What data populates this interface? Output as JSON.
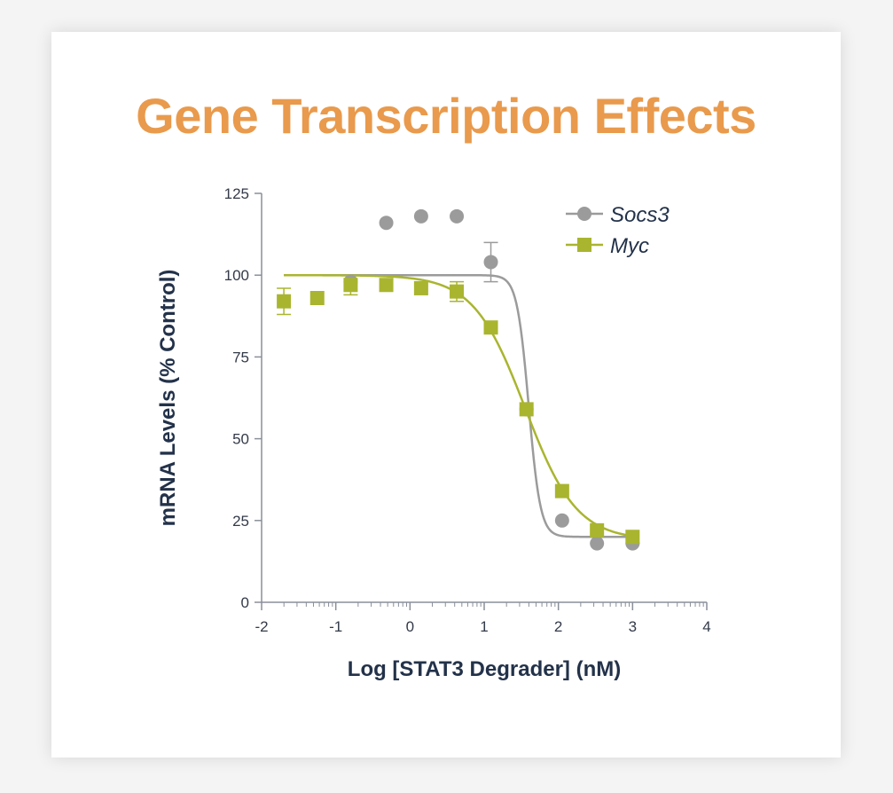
{
  "title": "Gene Transcription Effects",
  "colors": {
    "title": "#e99a4c",
    "socs3": "#9b9b9b",
    "myc": "#a9b52f",
    "axis": "#8a8f99",
    "text": "#23324a"
  },
  "chart_data": {
    "type": "scatter",
    "title": "Gene Transcription Effects",
    "xlabel": "Log [STAT3 Degrader] (nM)",
    "ylabel": "mRNA  Levels (% Control)",
    "xlim": [
      -2,
      4
    ],
    "ylim": [
      0,
      125
    ],
    "xticks": [
      -2,
      -1,
      0,
      1,
      2,
      3,
      4
    ],
    "yticks": [
      0,
      25,
      50,
      75,
      100,
      125
    ],
    "legend_position": "top-right",
    "grid": false,
    "series": [
      {
        "name": "Socs3",
        "marker": "circle",
        "color": "#9b9b9b",
        "x": [
          -0.8,
          -0.32,
          0.15,
          0.63,
          1.09,
          1.57,
          2.05,
          2.52,
          3.0
        ],
        "y": [
          98,
          116,
          118,
          118,
          104,
          59,
          25,
          18,
          18
        ],
        "error": [
          0,
          0,
          0,
          0,
          6,
          0,
          0,
          0,
          0
        ],
        "fit": {
          "top": 100,
          "bottom": 20,
          "logIC50": 1.6,
          "hill": 5.5,
          "x_range": [
            -1.7,
            3.0
          ]
        }
      },
      {
        "name": "Myc",
        "marker": "square",
        "color": "#a9b52f",
        "x": [
          -1.7,
          -1.25,
          -0.8,
          -0.32,
          0.15,
          0.63,
          1.09,
          1.57,
          2.05,
          2.52,
          3.0
        ],
        "y": [
          92,
          93,
          97,
          97,
          96,
          95,
          84,
          59,
          34,
          22,
          20
        ],
        "error": [
          4,
          0,
          3,
          0,
          0,
          3,
          0,
          0,
          0,
          0,
          0
        ],
        "fit": {
          "top": 100,
          "bottom": 19,
          "logIC50": 1.55,
          "hill": 1.25,
          "x_range": [
            -1.7,
            3.0
          ]
        }
      }
    ]
  }
}
